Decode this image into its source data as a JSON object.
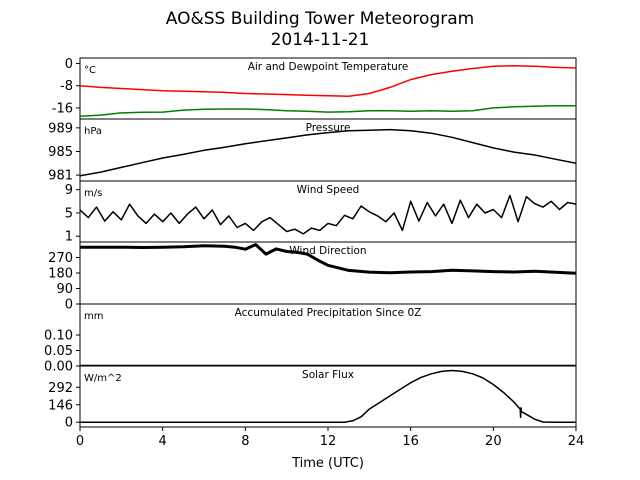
{
  "title": "AO&SS Building Tower Meteorogram",
  "subtitle": "2014-11-21",
  "chart_data": {
    "type": "line",
    "xlabel": "Time (UTC)",
    "xlim": [
      0,
      24
    ],
    "x_ticks": [
      0,
      4,
      8,
      12,
      16,
      20,
      24
    ],
    "panels": [
      {
        "id": "temperature",
        "title": "Air and Dewpoint Temperature",
        "unit": "°C",
        "ylim": [
          -20,
          2
        ],
        "y_ticks": [
          0,
          -8,
          -16
        ],
        "series": [
          {
            "name": "",
            "color": "#ff0000",
            "width": 1.5,
            "x": [
              0,
              1,
              2,
              3,
              4,
              5,
              6,
              7,
              8,
              9,
              10,
              11,
              12,
              13,
              14,
              15,
              16,
              17,
              18,
              19,
              20,
              20.5,
              21,
              22,
              23,
              24
            ],
            "y": [
              -8.0,
              -8.6,
              -9.0,
              -9.4,
              -9.8,
              -10.0,
              -10.2,
              -10.4,
              -10.8,
              -11.0,
              -11.2,
              -11.4,
              -11.6,
              -11.8,
              -10.8,
              -8.6,
              -5.8,
              -4.0,
              -2.8,
              -1.8,
              -1.0,
              -0.9,
              -0.8,
              -1.0,
              -1.4,
              -1.6
            ]
          },
          {
            "name": "",
            "color": "#008000",
            "width": 1.5,
            "x": [
              0,
              1,
              2,
              3,
              4,
              5,
              6,
              7,
              8,
              9,
              10,
              11,
              12,
              13,
              14,
              15,
              16,
              17,
              18,
              19,
              20,
              21,
              22,
              23,
              24
            ],
            "y": [
              -19.0,
              -18.6,
              -17.8,
              -17.6,
              -17.5,
              -16.8,
              -16.5,
              -16.4,
              -16.4,
              -16.6,
              -17.0,
              -17.2,
              -17.5,
              -17.4,
              -17.0,
              -17.0,
              -17.2,
              -17.0,
              -17.2,
              -17.0,
              -16.0,
              -15.6,
              -15.4,
              -15.2,
              -15.2
            ]
          }
        ]
      },
      {
        "id": "pressure",
        "title": "Pressure",
        "unit": "hPa",
        "ylim": [
          980,
          990.5
        ],
        "y_ticks": [
          981,
          985,
          989
        ],
        "series": [
          {
            "name": "",
            "color": "#000000",
            "width": 1.5,
            "x": [
              0,
              1,
              2,
              3,
              4,
              5,
              6,
              7,
              8,
              9,
              10,
              11,
              12,
              13,
              14,
              15,
              16,
              17,
              18,
              19,
              20,
              21,
              22,
              23,
              24
            ],
            "y": [
              980.9,
              981.5,
              982.3,
              983.1,
              983.9,
              984.5,
              985.2,
              985.7,
              986.3,
              986.8,
              987.3,
              987.8,
              988.2,
              988.5,
              988.6,
              988.7,
              988.5,
              988.1,
              987.4,
              986.5,
              985.6,
              984.9,
              984.4,
              983.7,
              983.0
            ]
          }
        ]
      },
      {
        "id": "wind_speed",
        "title": "Wind Speed",
        "unit": "m/s",
        "ylim": [
          0,
          10.5
        ],
        "y_ticks": [
          1,
          5,
          9
        ],
        "series": [
          {
            "name": "",
            "color": "#000000",
            "width": 1.5,
            "x": [
              0,
              0.4,
              0.8,
              1.2,
              1.6,
              2.0,
              2.4,
              2.8,
              3.2,
              3.6,
              4.0,
              4.4,
              4.8,
              5.2,
              5.6,
              6.0,
              6.4,
              6.8,
              7.2,
              7.6,
              8.0,
              8.4,
              8.8,
              9.2,
              9.6,
              10.0,
              10.4,
              10.8,
              11.2,
              11.6,
              12.0,
              12.4,
              12.8,
              13.2,
              13.6,
              14.0,
              14.4,
              14.8,
              15.2,
              15.6,
              16.0,
              16.4,
              16.8,
              17.2,
              17.6,
              18.0,
              18.4,
              18.8,
              19.2,
              19.6,
              20.0,
              20.4,
              20.8,
              21.2,
              21.6,
              22.0,
              22.4,
              22.8,
              23.2,
              23.6,
              24.0
            ],
            "y": [
              5.5,
              4.2,
              6.0,
              3.6,
              5.2,
              3.8,
              6.5,
              4.5,
              3.2,
              4.8,
              3.5,
              5.0,
              3.2,
              4.8,
              6.0,
              4.0,
              5.5,
              3.0,
              4.5,
              2.5,
              3.2,
              2.0,
              3.5,
              4.2,
              3.0,
              1.8,
              2.2,
              1.4,
              2.4,
              2.0,
              3.2,
              2.8,
              4.6,
              4.0,
              6.2,
              5.2,
              4.5,
              3.5,
              5.0,
              2.0,
              7.0,
              3.6,
              6.8,
              4.5,
              6.5,
              3.2,
              7.2,
              4.2,
              6.5,
              5.0,
              5.6,
              4.2,
              8.0,
              3.5,
              7.8,
              6.6,
              6.0,
              7.0,
              5.6,
              6.8,
              6.5
            ]
          }
        ]
      },
      {
        "id": "wind_direction",
        "title": "Wind Direction",
        "unit": "",
        "ylim": [
          0,
          360
        ],
        "y_ticks": [
          0,
          90,
          180,
          270
        ],
        "series": [
          {
            "name": "",
            "color": "#000000",
            "width": 3,
            "x": [
              0,
              1,
              2,
              3,
              4,
              5,
              6,
              7,
              7.5,
              8,
              8.5,
              9,
              9.5,
              10,
              10.5,
              11,
              11.5,
              12,
              13,
              14,
              15,
              16,
              17,
              18,
              19,
              20,
              21,
              22,
              23,
              24
            ],
            "y": [
              330,
              330,
              330,
              328,
              330,
              332,
              338,
              335,
              330,
              318,
              345,
              290,
              320,
              305,
              300,
              290,
              255,
              225,
              195,
              185,
              182,
              186,
              188,
              196,
              192,
              188,
              186,
              190,
              184,
              178
            ]
          }
        ]
      },
      {
        "id": "precipitation",
        "title": "Accumulated Precipitation Since 0Z",
        "unit": "mm",
        "ylim": [
          0,
          0.2
        ],
        "y_ticks": [
          0.0,
          0.05,
          0.1
        ],
        "y_tick_labels": [
          "0.00",
          "0.05",
          "0.10"
        ],
        "series": [
          {
            "name": "",
            "color": "#000000",
            "width": 2.5,
            "x": [
              0,
              24
            ],
            "y": [
              0,
              0
            ]
          }
        ]
      },
      {
        "id": "solar_flux",
        "title": "Solar Flux",
        "unit": "W/m^2",
        "ylim": [
          -40,
          470
        ],
        "y_ticks": [
          0,
          146,
          292
        ],
        "series": [
          {
            "name": "",
            "color": "#000000",
            "width": 1.5,
            "x": [
              0,
              12.8,
              13.2,
              13.6,
              14.0,
              14.5,
              15,
              15.5,
              16,
              16.5,
              17,
              17.5,
              18,
              18.5,
              19,
              19.5,
              20,
              20.5,
              21,
              21.3,
              21.32,
              21.34,
              21.36,
              21.5,
              22,
              22.4,
              23,
              24
            ],
            "y": [
              0,
              0,
              12,
              45,
              110,
              165,
              220,
              275,
              330,
              375,
              405,
              425,
              432,
              425,
              405,
              370,
              315,
              248,
              168,
              110,
              40,
              120,
              90,
              75,
              25,
              2,
              0,
              0
            ]
          }
        ]
      }
    ]
  }
}
